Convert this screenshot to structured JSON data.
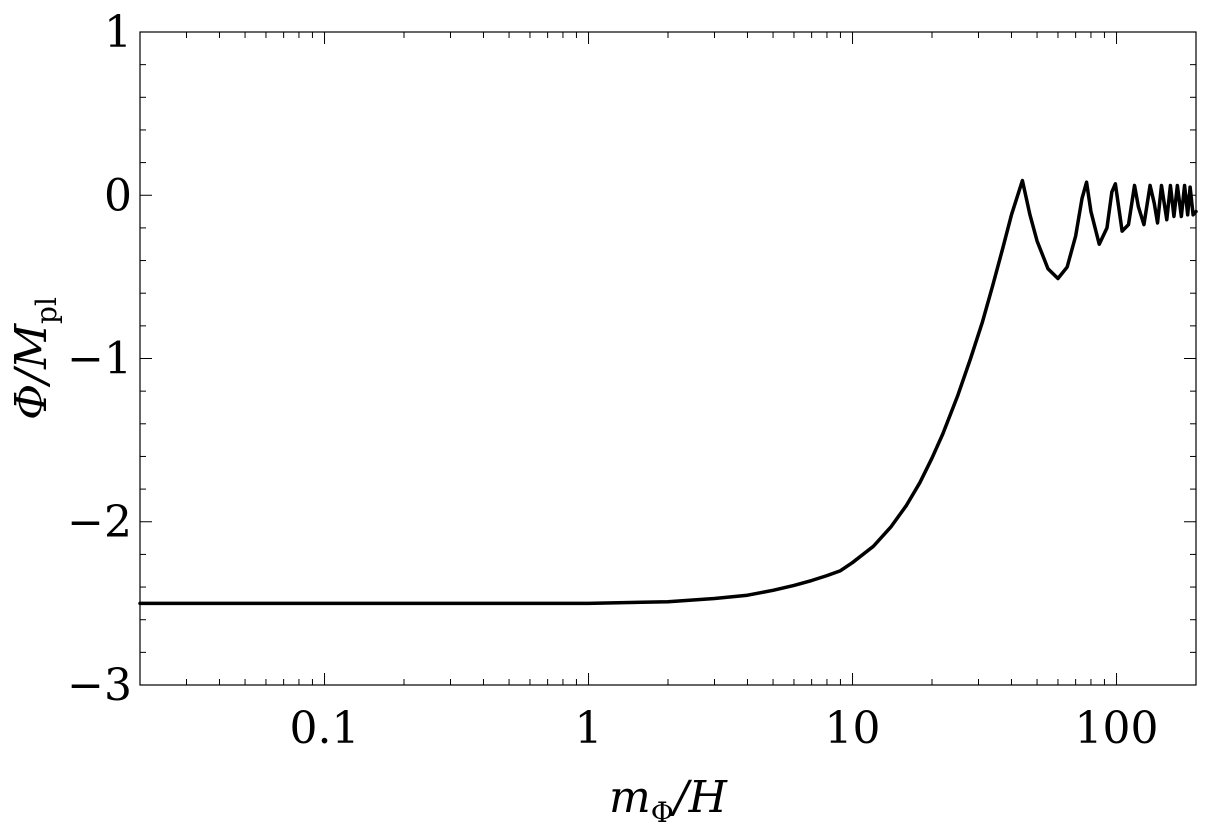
{
  "chart_data": {
    "type": "line",
    "title": "",
    "xlabel": {
      "main": "m",
      "sub": "Φ",
      "rest": "/H"
    },
    "ylabel": {
      "main": "Φ/M",
      "sub": "pl"
    },
    "x_scale": "log",
    "xlim": [
      0.02,
      200
    ],
    "ylim": [
      -3,
      1
    ],
    "x_ticks": [
      {
        "value": 0.1,
        "label": "0.1"
      },
      {
        "value": 1,
        "label": "1"
      },
      {
        "value": 10,
        "label": "10"
      },
      {
        "value": 100,
        "label": "100"
      }
    ],
    "y_ticks": [
      {
        "value": 1,
        "label": "1"
      },
      {
        "value": 0,
        "label": "0"
      },
      {
        "value": -1,
        "label": "−1"
      },
      {
        "value": -2,
        "label": "−2"
      },
      {
        "value": -3,
        "label": "−3"
      }
    ],
    "grid": false,
    "legend": "none",
    "line_color": "#000000",
    "series": [
      {
        "x": [
          0.02,
          0.05,
          0.1,
          0.3,
          1,
          2,
          3,
          4,
          5,
          6,
          7,
          8,
          9,
          10,
          12,
          14,
          16,
          18,
          20,
          22,
          25,
          28,
          31,
          34,
          37,
          40,
          44,
          47,
          50,
          55,
          60,
          65,
          70,
          74,
          77,
          80,
          86,
          92,
          96,
          99,
          105,
          111,
          117,
          121,
          127,
          134,
          139,
          143,
          148,
          155,
          160,
          165,
          170,
          176,
          181,
          186,
          190,
          195,
          200
        ],
        "y": [
          -2.5,
          -2.5,
          -2.5,
          -2.5,
          -2.5,
          -2.49,
          -2.47,
          -2.45,
          -2.42,
          -2.39,
          -2.36,
          -2.33,
          -2.3,
          -2.25,
          -2.15,
          -2.03,
          -1.9,
          -1.76,
          -1.61,
          -1.46,
          -1.23,
          -1.0,
          -0.78,
          -0.55,
          -0.33,
          -0.12,
          0.09,
          -0.12,
          -0.28,
          -0.45,
          -0.51,
          -0.44,
          -0.25,
          -0.02,
          0.08,
          -0.1,
          -0.3,
          -0.2,
          0.02,
          0.07,
          -0.22,
          -0.18,
          0.06,
          -0.07,
          -0.18,
          0.06,
          -0.05,
          -0.17,
          0.06,
          -0.15,
          0.06,
          -0.13,
          0.06,
          -0.13,
          0.06,
          -0.12,
          0.05,
          -0.12,
          -0.1
        ]
      }
    ]
  }
}
